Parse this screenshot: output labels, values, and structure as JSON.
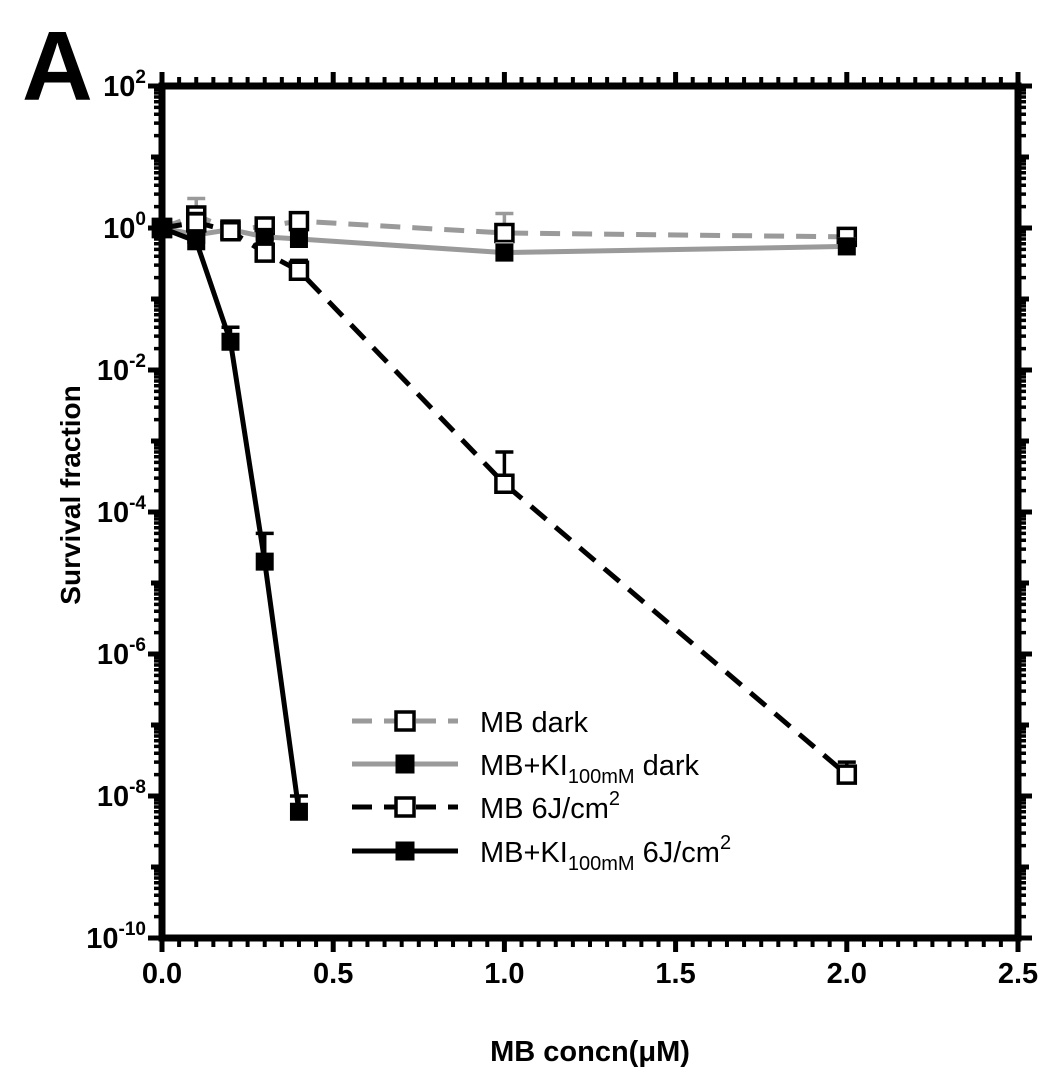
{
  "chart_data": {
    "type": "line",
    "panel_label": "A",
    "xlabel": "MB concn(μM)",
    "ylabel": "Survival fraction",
    "xscale": "linear",
    "yscale": "log",
    "xlim": [
      0,
      2.5
    ],
    "ylim": [
      1e-10,
      100
    ],
    "xticks": [
      0,
      0.5,
      1,
      1.5,
      2,
      2.5
    ],
    "xtick_labels": [
      "0.0",
      "0.5",
      "1.0",
      "1.5",
      "2.0",
      "2.5"
    ],
    "yticks": [
      {
        "value": 100,
        "base": "10",
        "exp": "2"
      },
      {
        "value": 1,
        "base": "10",
        "exp": "0"
      },
      {
        "value": 0.01,
        "base": "10",
        "exp": "-2"
      },
      {
        "value": 0.0001,
        "base": "10",
        "exp": "-4"
      },
      {
        "value": 1e-06,
        "base": "10",
        "exp": "-6"
      },
      {
        "value": 1e-08,
        "base": "10",
        "exp": "-8"
      },
      {
        "value": 1e-10,
        "base": "10",
        "exp": "-10"
      }
    ],
    "grid": false,
    "legend_position": "lower-right",
    "series": [
      {
        "name": "MB dark",
        "legend": {
          "main": "MB dark",
          "sub": "",
          "after": "",
          "sup": ""
        },
        "color": "#9a9a9a",
        "dash": "dashed",
        "marker": "open-square",
        "x": [
          0,
          0.1,
          0.2,
          0.3,
          0.4,
          1.0,
          2.0
        ],
        "y": [
          1.0,
          1.5,
          0.95,
          1.05,
          1.25,
          0.85,
          0.75
        ],
        "err_upper": [
          1.3,
          2.6,
          1.1,
          1.3,
          1.5,
          1.6,
          0.95
        ]
      },
      {
        "name": "MB+KI100mM dark",
        "legend": {
          "main": "MB+KI",
          "sub": "100mM",
          "after": " dark",
          "sup": ""
        },
        "color": "#9a9a9a",
        "dash": "solid",
        "marker": "filled-square",
        "x": [
          0,
          0.1,
          0.2,
          0.3,
          0.4,
          1.0,
          2.0
        ],
        "y": [
          1.0,
          0.8,
          0.95,
          0.75,
          0.7,
          0.45,
          0.55
        ],
        "err_upper": [
          1.2,
          1.0,
          1.1,
          0.9,
          0.85,
          0.6,
          0.7
        ]
      },
      {
        "name": "MB 6J/cm2",
        "legend": {
          "main": "MB 6J/cm",
          "sub": "",
          "after": "",
          "sup": "2"
        },
        "color": "#000000",
        "dash": "dashed",
        "marker": "open-square",
        "x": [
          0,
          0.1,
          0.2,
          0.3,
          0.4,
          1.0,
          2.0
        ],
        "y": [
          1.0,
          1.2,
          0.9,
          0.45,
          0.25,
          0.00025,
          2e-08
        ],
        "err_upper": [
          1.3,
          1.6,
          1.1,
          0.7,
          0.35,
          0.0007,
          3e-08
        ]
      },
      {
        "name": "MB+KI100mM 6J/cm2",
        "legend": {
          "main": "MB+KI",
          "sub": "100mM",
          "after": " 6J/cm",
          "sup": "2"
        },
        "color": "#000000",
        "dash": "solid",
        "marker": "filled-square",
        "x": [
          0,
          0.1,
          0.2,
          0.3,
          0.4
        ],
        "y": [
          1.0,
          0.65,
          0.025,
          2e-05,
          6e-09
        ],
        "err_upper": [
          1.2,
          0.85,
          0.04,
          5e-05,
          1e-08
        ]
      }
    ]
  }
}
